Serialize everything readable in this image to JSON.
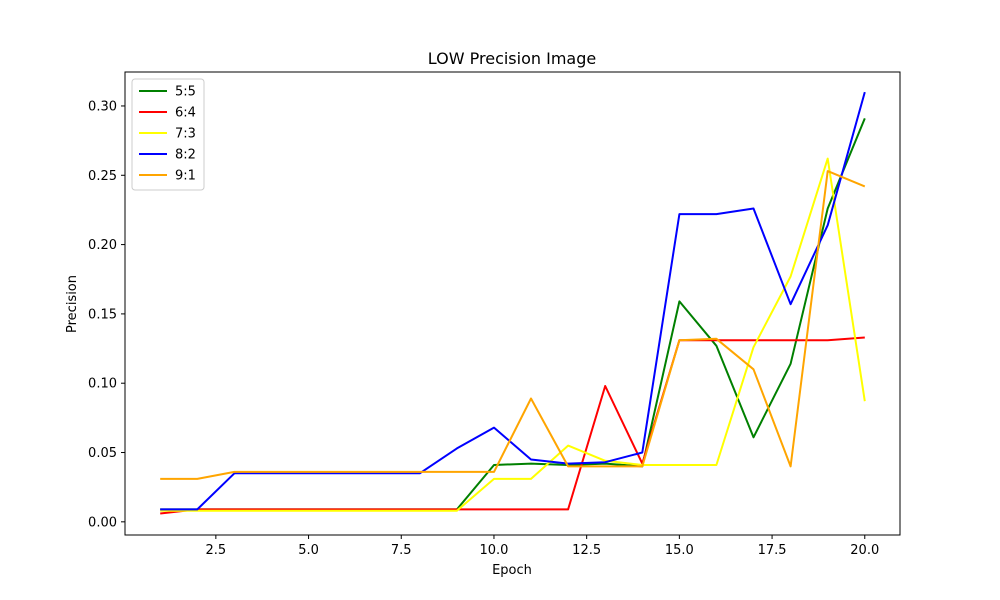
{
  "chart_data": {
    "type": "line",
    "title": "LOW Precision Image",
    "xlabel": "Epoch",
    "ylabel": "Precision",
    "xlim": [
      0.05,
      20.95
    ],
    "ylim": [
      -0.0095,
      0.3245
    ],
    "x_ticks": [
      2.5,
      5.0,
      7.5,
      10.0,
      12.5,
      15.0,
      17.5,
      20.0
    ],
    "x_tick_labels": [
      "2.5",
      "5.0",
      "7.5",
      "10.0",
      "12.5",
      "15.0",
      "17.5",
      "20.0"
    ],
    "y_ticks": [
      0.0,
      0.05,
      0.1,
      0.15,
      0.2,
      0.25,
      0.3
    ],
    "y_tick_labels": [
      "0.00",
      "0.05",
      "0.10",
      "0.15",
      "0.20",
      "0.25",
      "0.30"
    ],
    "grid": false,
    "legend_position": "top-left",
    "x": [
      1,
      2,
      3,
      4,
      5,
      6,
      7,
      8,
      9,
      10,
      11,
      12,
      13,
      14,
      15,
      16,
      17,
      18,
      19,
      20
    ],
    "series": [
      {
        "name": "5:5",
        "color": "#008000",
        "values": [
          0.009,
          0.009,
          0.009,
          0.009,
          0.009,
          0.009,
          0.009,
          0.009,
          0.009,
          0.041,
          0.042,
          0.041,
          0.042,
          0.04,
          0.159,
          0.127,
          0.061,
          0.114,
          0.226,
          0.291
        ]
      },
      {
        "name": "6:4",
        "color": "#ff0000",
        "values": [
          0.006,
          0.009,
          0.009,
          0.009,
          0.009,
          0.009,
          0.009,
          0.009,
          0.009,
          0.009,
          0.009,
          0.009,
          0.098,
          0.042,
          0.131,
          0.131,
          0.131,
          0.131,
          0.131,
          0.133
        ]
      },
      {
        "name": "7:3",
        "color": "#ffff00",
        "values": [
          0.008,
          0.008,
          0.008,
          0.008,
          0.008,
          0.008,
          0.008,
          0.008,
          0.008,
          0.031,
          0.031,
          0.055,
          0.044,
          0.041,
          0.041,
          0.041,
          0.126,
          0.177,
          0.262,
          0.087
        ]
      },
      {
        "name": "8:2",
        "color": "#0000ff",
        "values": [
          0.009,
          0.009,
          0.035,
          0.035,
          0.035,
          0.035,
          0.035,
          0.035,
          0.053,
          0.068,
          0.045,
          0.042,
          0.043,
          0.05,
          0.222,
          0.222,
          0.226,
          0.157,
          0.214,
          0.31
        ]
      },
      {
        "name": "9:1",
        "color": "#ffa500",
        "values": [
          0.031,
          0.031,
          0.036,
          0.036,
          0.036,
          0.036,
          0.036,
          0.036,
          0.036,
          0.036,
          0.089,
          0.04,
          0.04,
          0.04,
          0.131,
          0.132,
          0.11,
          0.04,
          0.253,
          0.242
        ]
      }
    ]
  }
}
